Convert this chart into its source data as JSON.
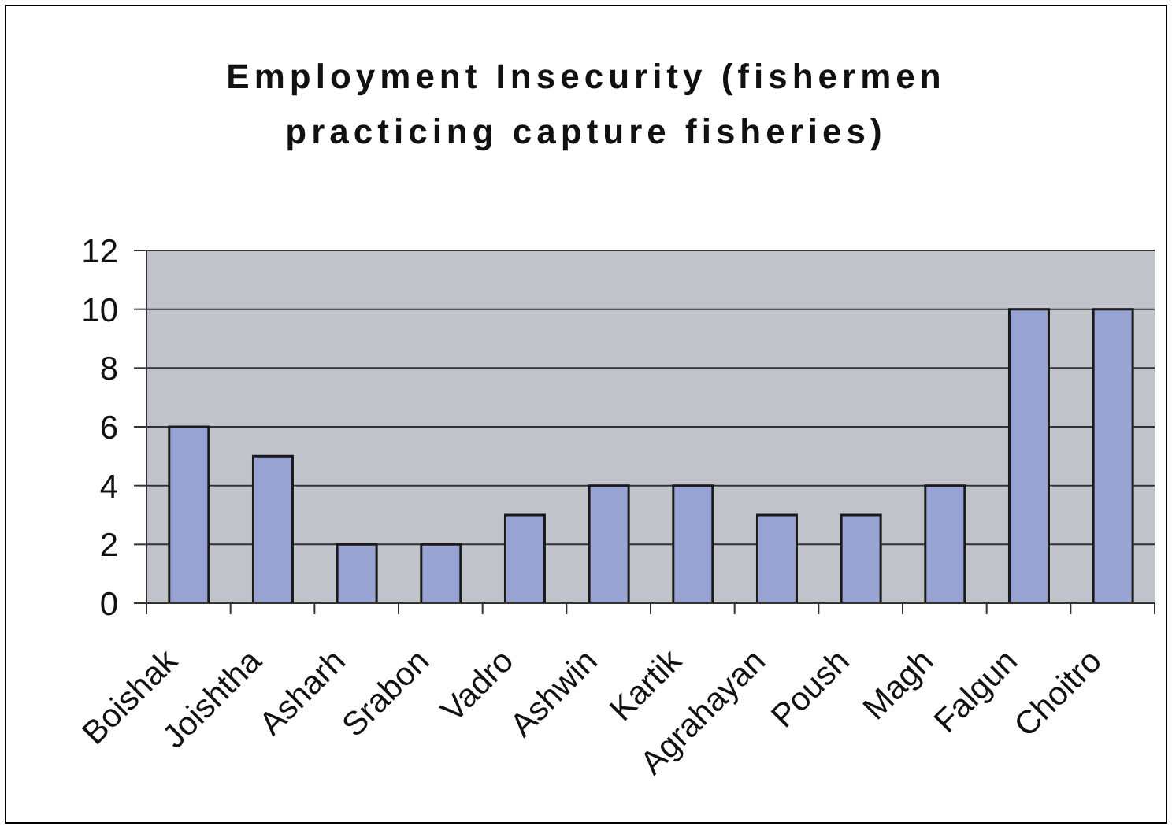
{
  "chart_data": {
    "type": "bar",
    "title": "Employment Insecurity (fishermen practicing capture fisheries)",
    "categories": [
      "Boishak",
      "Joishtha",
      "Asharh",
      "Srabon",
      "Vadro",
      "Ashwin",
      "Kartik",
      "Agrahayan",
      "Poush",
      "Magh",
      "Falgun",
      "Choitro"
    ],
    "values": [
      6,
      5,
      2,
      2,
      3,
      4,
      4,
      3,
      3,
      4,
      10,
      10
    ],
    "color": "#99a3d3",
    "ylim": [
      0,
      12
    ],
    "yticks": [
      0,
      2,
      4,
      6,
      8,
      10,
      12
    ],
    "grid": "y"
  }
}
